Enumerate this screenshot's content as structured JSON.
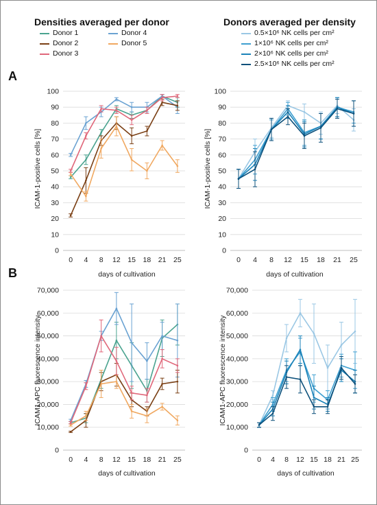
{
  "headers": {
    "left": "Densities averaged per donor",
    "right": "Donors averaged per density"
  },
  "panel_labels": {
    "a": "A",
    "b": "B"
  },
  "legend_left": [
    {
      "label": "Donor 1",
      "color": "#4aa38f"
    },
    {
      "label": "Donor 4",
      "color": "#6aa2d2"
    },
    {
      "label": "Donor 2",
      "color": "#7a3f14"
    },
    {
      "label": "Donor 5",
      "color": "#f0a860"
    },
    {
      "label": "Donor 3",
      "color": "#e0677a"
    }
  ],
  "legend_right": [
    {
      "label": "0.5×10⁶ NK cells per cm²",
      "color": "#9ac7e4"
    },
    {
      "label": "1×10⁶ NK cells per cm²",
      "color": "#3e9fd0"
    },
    {
      "label": "2×10⁶ NK cells per cm²",
      "color": "#1a82b8"
    },
    {
      "label": "2.5×10⁶ NK cells per cm²",
      "color": "#0b4f7a"
    }
  ],
  "chart_data": [
    {
      "id": "A-left",
      "type": "line",
      "categories": [
        "0",
        "4",
        "8",
        "12",
        "15",
        "18",
        "21",
        "25"
      ],
      "xlabel": "days of cultivation",
      "ylabel": "ICAM-1-positive cells [%]",
      "ylim": [
        0,
        100
      ],
      "yticks": [
        "0",
        "10",
        "20",
        "30",
        "40",
        "50",
        "60",
        "70",
        "80",
        "90",
        "100"
      ],
      "series": [
        {
          "name": "Donor 1",
          "color": "#4aa38f",
          "values": [
            46,
            57,
            74,
            89,
            85,
            88,
            97,
            93
          ],
          "err": [
            1,
            3,
            2,
            2,
            2,
            2,
            1,
            3
          ]
        },
        {
          "name": "Donor 4",
          "color": "#6aa2d2",
          "values": [
            60,
            80,
            87,
            95,
            90,
            90,
            97,
            90
          ],
          "err": [
            1,
            4,
            3,
            1,
            3,
            3,
            1,
            4
          ]
        },
        {
          "name": "Donor 2",
          "color": "#7a3f14",
          "values": [
            22,
            44,
            69,
            80,
            72,
            75,
            93,
            91
          ],
          "err": [
            1,
            8,
            3,
            4,
            5,
            3,
            2,
            3
          ]
        },
        {
          "name": "Donor 5",
          "color": "#f0a860",
          "values": [
            48,
            34,
            64,
            78,
            57,
            50,
            66,
            53
          ],
          "err": [
            1,
            3,
            6,
            6,
            7,
            5,
            3,
            4
          ]
        },
        {
          "name": "Donor 3",
          "color": "#e0677a",
          "values": [
            50,
            72,
            89,
            88,
            82,
            88,
            96,
            97
          ],
          "err": [
            1,
            2,
            2,
            2,
            3,
            2,
            2,
            1
          ]
        }
      ]
    },
    {
      "id": "A-right",
      "type": "line",
      "categories": [
        "0",
        "4",
        "8",
        "12",
        "15",
        "18",
        "21",
        "25"
      ],
      "xlabel": "days of cultivation",
      "ylabel": "ICAM-1-positive cells [%]",
      "ylim": [
        0,
        100
      ],
      "yticks": [
        "0",
        "10",
        "20",
        "30",
        "40",
        "50",
        "60",
        "70",
        "80",
        "90",
        "100"
      ],
      "series": [
        {
          "name": "0.5×10⁶ NK cells per cm²",
          "color": "#9ac7e4",
          "values": [
            45,
            62,
            77,
            91,
            87,
            80,
            91,
            82
          ],
          "err": [
            6,
            8,
            6,
            3,
            5,
            7,
            5,
            7
          ]
        },
        {
          "name": "1×10⁶ NK cells per cm²",
          "color": "#3e9fd0",
          "values": [
            45,
            57,
            76,
            89,
            74,
            78,
            90,
            87
          ],
          "err": [
            6,
            9,
            6,
            4,
            8,
            8,
            6,
            7
          ]
        },
        {
          "name": "2×10⁶ NK cells per cm²",
          "color": "#1a82b8",
          "values": [
            45,
            54,
            76,
            87,
            73,
            78,
            90,
            86
          ],
          "err": [
            6,
            10,
            7,
            4,
            8,
            8,
            6,
            8
          ]
        },
        {
          "name": "2.5×10⁶ NK cells per cm²",
          "color": "#0b4f7a",
          "values": [
            45,
            51,
            76,
            84,
            72,
            77,
            89,
            86
          ],
          "err": [
            6,
            11,
            7,
            5,
            8,
            9,
            6,
            8
          ]
        }
      ]
    },
    {
      "id": "B-left",
      "type": "line",
      "categories": [
        "0",
        "4",
        "8",
        "12",
        "15",
        "18",
        "21",
        "25"
      ],
      "xlabel": "days of cultivation",
      "ylabel": "ICAM1-APC fluorescence intensity",
      "ylim": [
        0,
        70000
      ],
      "yticks": [
        "0",
        "10,000",
        "20,000",
        "30,000",
        "40,000",
        "50,000",
        "60,000",
        "70,000"
      ],
      "series": [
        {
          "name": "Donor 1",
          "color": "#4aa38f",
          "values": [
            12000,
            14000,
            31000,
            48000,
            37000,
            26000,
            49000,
            55000
          ],
          "err": [
            500,
            2000,
            4000,
            8000,
            10000,
            5000,
            8000,
            9000
          ]
        },
        {
          "name": "Donor 4",
          "color": "#6aa2d2",
          "values": [
            13000,
            29000,
            50000,
            62000,
            47000,
            39000,
            50000,
            48000
          ],
          "err": [
            500,
            1500,
            2000,
            7000,
            17000,
            8000,
            6000,
            16000
          ]
        },
        {
          "name": "Donor 2",
          "color": "#7a3f14",
          "values": [
            8000,
            13000,
            30000,
            33000,
            22000,
            17000,
            29000,
            30000
          ],
          "err": [
            300,
            3000,
            4000,
            5000,
            3000,
            2000,
            2500,
            5000
          ]
        },
        {
          "name": "Donor 5",
          "color": "#f0a860",
          "values": [
            11000,
            15000,
            29000,
            30000,
            17000,
            15000,
            19000,
            13000
          ],
          "err": [
            500,
            2000,
            6000,
            3000,
            3000,
            3000,
            1500,
            2000
          ]
        },
        {
          "name": "Donor 3",
          "color": "#e0677a",
          "values": [
            12000,
            28000,
            50000,
            39000,
            25000,
            24000,
            40000,
            37000
          ],
          "err": [
            500,
            1500,
            7000,
            6000,
            3000,
            3000,
            4000,
            3000
          ]
        }
      ]
    },
    {
      "id": "B-right",
      "type": "line",
      "categories": [
        "0",
        "4",
        "8",
        "12",
        "15",
        "18",
        "21",
        "25"
      ],
      "xlabel": "days of cultivation",
      "ylabel": "ICAM1-APC fluorescence intensity",
      "ylim": [
        0,
        70000
      ],
      "yticks": [
        "0",
        "10,000",
        "20,000",
        "30,000",
        "40,000",
        "50,000",
        "60,000",
        "70,000"
      ],
      "series": [
        {
          "name": "0.5×10⁶ NK cells per cm²",
          "color": "#9ac7e4",
          "values": [
            11000,
            24000,
            49000,
            60000,
            51000,
            36000,
            46000,
            52000
          ],
          "err": [
            1000,
            2000,
            6000,
            6000,
            13000,
            10000,
            10000,
            14000
          ]
        },
        {
          "name": "1×10⁶ NK cells per cm²",
          "color": "#3e9fd0",
          "values": [
            11000,
            20000,
            35000,
            43000,
            27000,
            22000,
            37000,
            35000
          ],
          "err": [
            1000,
            3000,
            5000,
            6000,
            6000,
            4000,
            5000,
            8000
          ]
        },
        {
          "name": "2×10⁶ NK cells per cm²",
          "color": "#1a82b8",
          "values": [
            11000,
            18000,
            34000,
            44000,
            23000,
            20000,
            35000,
            30000
          ],
          "err": [
            1000,
            3000,
            5000,
            6000,
            5000,
            3000,
            5000,
            5000
          ]
        },
        {
          "name": "2.5×10⁶ NK cells per cm²",
          "color": "#0b4f7a",
          "values": [
            11000,
            16000,
            32000,
            31000,
            19000,
            19000,
            36000,
            29000
          ],
          "err": [
            1000,
            3000,
            5000,
            6000,
            3000,
            3000,
            5000,
            4000
          ]
        }
      ]
    }
  ]
}
